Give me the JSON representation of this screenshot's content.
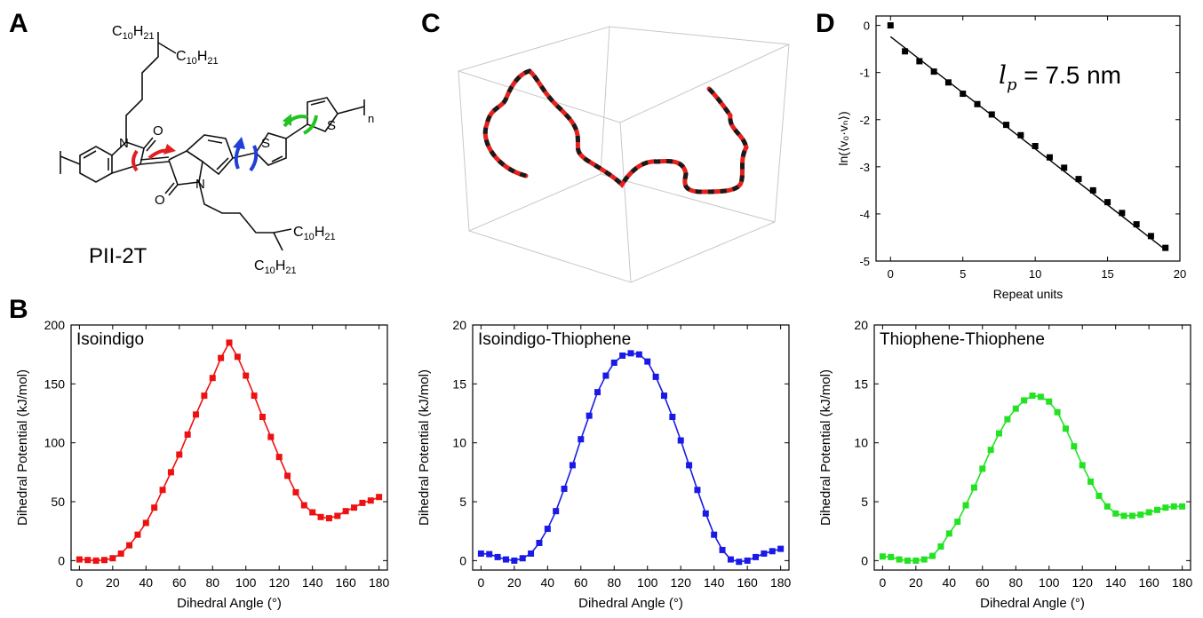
{
  "panels": {
    "a": "A",
    "b": "B",
    "c": "C",
    "d": "D"
  },
  "molecule": {
    "name": "PII-2T",
    "chain_top": "C",
    "chain_sub_10": "10",
    "chain_h": "H",
    "chain_sub_21": "21",
    "atom_n": "N",
    "atom_o": "O",
    "atom_s": "S",
    "repeat_n": "n",
    "arrow_colors": [
      "#e02020",
      "#1f3fd8",
      "#22c322"
    ]
  },
  "chain3d": {
    "colors": [
      "#e8201c",
      "#1a1a1a"
    ]
  },
  "chart_data": [
    {
      "type": "scatter",
      "id": "persistence",
      "title": "",
      "annotation_symbol": "l",
      "annotation_subscript": "p",
      "annotation_text": " = 7.5 nm",
      "xlabel": "Repeat units",
      "ylabel": "ln(⟨v₀·vₙ⟩)",
      "xlim": [
        -1,
        20
      ],
      "ylim": [
        -5,
        0.2
      ],
      "xticks": [
        0,
        5,
        10,
        15,
        20
      ],
      "yticks": [
        0,
        -1,
        -2,
        -3,
        -4,
        -5
      ],
      "points_x": [
        0,
        1,
        2,
        3,
        4,
        5,
        6,
        7,
        8,
        9,
        10,
        11,
        12,
        13,
        14,
        15,
        16,
        17,
        18,
        19
      ],
      "points_y": [
        0,
        -0.55,
        -0.76,
        -0.98,
        -1.21,
        -1.45,
        -1.67,
        -1.89,
        -2.11,
        -2.33,
        -2.56,
        -2.8,
        -3.02,
        -3.26,
        -3.5,
        -3.75,
        -3.98,
        -4.22,
        -4.47,
        -4.72
      ],
      "fit_x": [
        0,
        19
      ],
      "fit_y": [
        -0.24,
        -4.76
      ],
      "color": "#000000"
    },
    {
      "type": "line",
      "id": "isoindigo",
      "title": "Isoindigo",
      "xlabel": "Dihedral Angle (°)",
      "ylabel": "Dihedral Potential (kJ/mol)",
      "xlim": [
        -5,
        185
      ],
      "ylim": [
        -8,
        200
      ],
      "xticks": [
        0,
        20,
        40,
        60,
        80,
        100,
        120,
        140,
        160,
        180
      ],
      "yticks": [
        0,
        50,
        100,
        150,
        200
      ],
      "x": [
        0,
        5,
        10,
        15,
        20,
        25,
        30,
        35,
        40,
        45,
        50,
        55,
        60,
        65,
        70,
        75,
        80,
        85,
        90,
        95,
        100,
        105,
        110,
        115,
        120,
        125,
        130,
        135,
        140,
        145,
        150,
        155,
        160,
        165,
        170,
        175,
        180
      ],
      "y": [
        1,
        0.5,
        0,
        0.5,
        2,
        6,
        13,
        22,
        32,
        45,
        60,
        75,
        90,
        107,
        124,
        140,
        155,
        172,
        185,
        173,
        157,
        140,
        122,
        105,
        88,
        72,
        58,
        47,
        41,
        37,
        36,
        38,
        42,
        45,
        49,
        51,
        54
      ],
      "color": "#ee1111"
    },
    {
      "type": "line",
      "id": "isoindigo-thiophene",
      "title": "Isoindigo-Thiophene",
      "xlabel": "Dihedral Angle (°)",
      "ylabel": "Dihedral Potential (kJ/mol)",
      "xlim": [
        -5,
        185
      ],
      "ylim": [
        -0.8,
        20
      ],
      "xticks": [
        0,
        20,
        40,
        60,
        80,
        100,
        120,
        140,
        160,
        180
      ],
      "yticks": [
        0,
        5,
        10,
        15,
        20
      ],
      "x": [
        0,
        5,
        10,
        15,
        20,
        25,
        30,
        35,
        40,
        45,
        50,
        55,
        60,
        65,
        70,
        75,
        80,
        85,
        90,
        95,
        100,
        105,
        110,
        115,
        120,
        125,
        130,
        135,
        140,
        145,
        150,
        155,
        160,
        165,
        170,
        175,
        180
      ],
      "y": [
        0.6,
        0.55,
        0.3,
        0.1,
        0.0,
        0.2,
        0.6,
        1.5,
        2.7,
        4.2,
        6.1,
        8.1,
        10.3,
        12.3,
        14.3,
        15.7,
        16.8,
        17.4,
        17.6,
        17.5,
        16.9,
        15.6,
        14.0,
        12.2,
        10.2,
        8.1,
        6.0,
        4.0,
        2.2,
        0.9,
        0.1,
        -0.1,
        0.0,
        0.3,
        0.6,
        0.8,
        1.0
      ],
      "color": "#1a1ae6"
    },
    {
      "type": "line",
      "id": "thiophene-thiophene",
      "title": "Thiophene-Thiophene",
      "xlabel": "Dihedral Angle (°)",
      "ylabel": "Dihedral Potential (kJ/mol)",
      "xlim": [
        -5,
        185
      ],
      "ylim": [
        -0.8,
        20
      ],
      "xticks": [
        0,
        20,
        40,
        60,
        80,
        100,
        120,
        140,
        160,
        180
      ],
      "yticks": [
        0,
        5,
        10,
        15,
        20
      ],
      "x": [
        0,
        5,
        10,
        15,
        20,
        25,
        30,
        35,
        40,
        45,
        50,
        55,
        60,
        65,
        70,
        75,
        80,
        85,
        90,
        95,
        100,
        105,
        110,
        115,
        120,
        125,
        130,
        135,
        140,
        145,
        150,
        155,
        160,
        165,
        170,
        175,
        180
      ],
      "y": [
        0.35,
        0.3,
        0.1,
        0.0,
        0.0,
        0.1,
        0.4,
        1.2,
        2.3,
        3.3,
        4.7,
        6.2,
        7.8,
        9.4,
        10.8,
        12.0,
        12.9,
        13.6,
        14.0,
        13.9,
        13.5,
        12.6,
        11.2,
        9.7,
        8.1,
        6.7,
        5.5,
        4.6,
        4.0,
        3.8,
        3.8,
        3.9,
        4.1,
        4.3,
        4.5,
        4.6,
        4.6
      ],
      "color": "#22e322"
    }
  ]
}
